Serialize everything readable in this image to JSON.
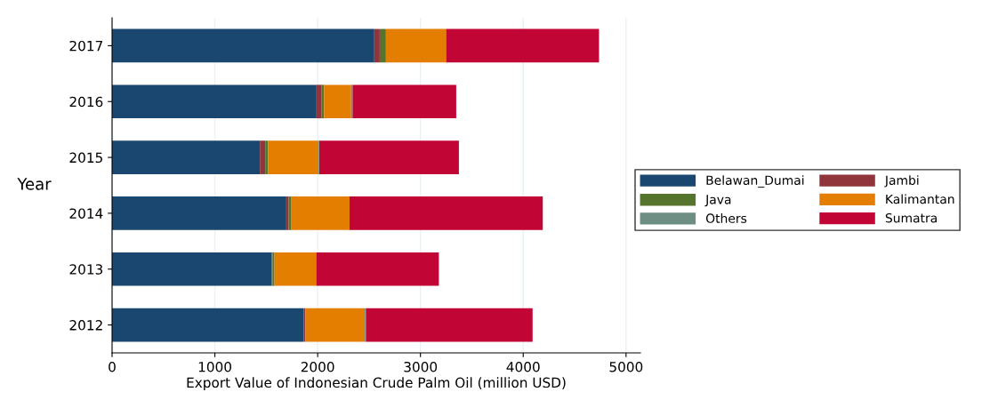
{
  "chart_data": {
    "type": "bar",
    "orientation": "horizontal",
    "stacked": true,
    "xlabel": "Export Value of Indonesian Crude Palm Oil (million USD)",
    "ylabel": "Year",
    "categories": [
      "2017",
      "2016",
      "2015",
      "2014",
      "2013",
      "2012"
    ],
    "series": [
      {
        "name": "Belawan_Dumai",
        "color": "#1a476f",
        "values": [
          2551,
          1989,
          1438,
          1695,
          1553,
          1864
        ]
      },
      {
        "name": "Jambi",
        "color": "#90353b",
        "values": [
          53,
          50,
          52,
          23,
          7,
          16
        ]
      },
      {
        "name": "Java",
        "color": "#55752f",
        "values": [
          60,
          23,
          27,
          27,
          20,
          3
        ]
      },
      {
        "name": "Kalimantan",
        "color": "#e37e00",
        "values": [
          581,
          264,
          492,
          565,
          406,
          576
        ]
      },
      {
        "name": "Others",
        "color": "#6e8e84",
        "values": [
          5,
          14,
          7,
          null,
          null,
          10
        ]
      },
      {
        "name": "Sumatra",
        "color": "#c10534",
        "values": [
          1487,
          1008,
          1358,
          1880,
          1193,
          1622
        ]
      }
    ],
    "xlim": [
      0,
      5140
    ],
    "xticks": [
      0,
      1000,
      2000,
      3000,
      4000,
      5000
    ],
    "grid": "x",
    "legend": "right"
  }
}
